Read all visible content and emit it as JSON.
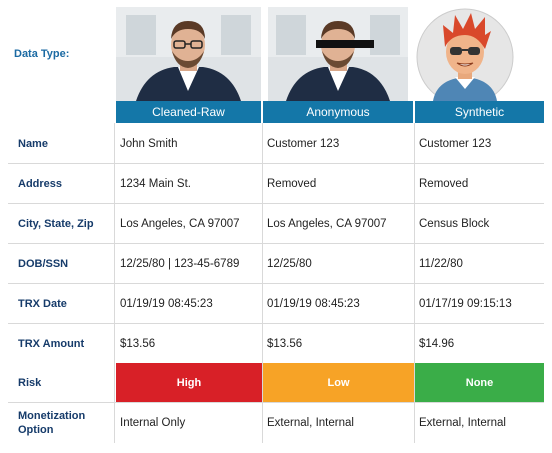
{
  "data_type_label": "Data Type:",
  "columns": [
    {
      "label": "Cleaned-Raw",
      "image": "professional-man-photo"
    },
    {
      "label": "Anonymous",
      "image": "censored-man-photo"
    },
    {
      "label": "Synthetic",
      "image": "cartoon-avatar"
    }
  ],
  "rows": [
    {
      "label": "Name",
      "values": [
        "John Smith",
        "Customer 123",
        "Customer 123"
      ]
    },
    {
      "label": "Address",
      "values": [
        "1234 Main St.",
        "Removed",
        "Removed"
      ]
    },
    {
      "label": "City, State, Zip",
      "values": [
        "Los Angeles, CA 97007",
        "Los Angeles, CA 97007",
        "Census Block"
      ]
    },
    {
      "label": "DOB/SSN",
      "values": [
        "12/25/80 | 123-45-6789",
        "12/25/80",
        "11/22/80"
      ]
    },
    {
      "label": "TRX Date",
      "values": [
        "01/19/19 08:45:23",
        "01/19/19 08:45:23",
        "01/17/19 09:15:13"
      ]
    },
    {
      "label": "TRX Amount",
      "values": [
        "$13.56",
        "$13.56",
        "$14.96"
      ]
    },
    {
      "label": "Risk",
      "values": [
        "High",
        "Low",
        "None"
      ]
    },
    {
      "label": "Monetization Option",
      "values": [
        "Internal Only",
        "External, Internal",
        "External, Internal"
      ]
    }
  ],
  "risk_colors": [
    "#d82027",
    "#f7a326",
    "#3aad48"
  ],
  "header_color": "#1477a8"
}
